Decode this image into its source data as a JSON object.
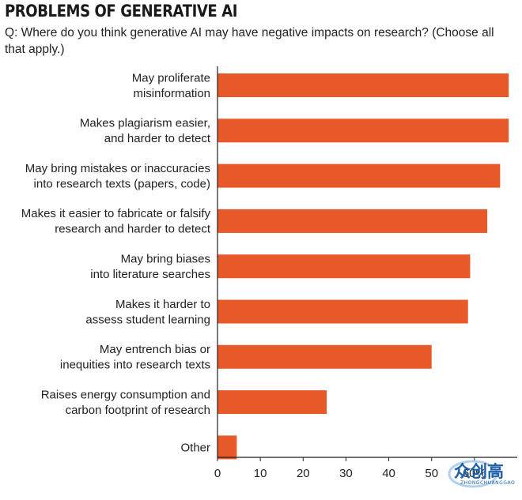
{
  "header": {
    "title": "PROBLEMS OF GENERATIVE AI",
    "question": "Q: Where do you think generative AI may have negative impacts on research? (Choose all that apply.)"
  },
  "colors": {
    "bar": "#e8592a",
    "text": "#222222"
  },
  "chart_data": {
    "type": "bar",
    "orientation": "horizontal",
    "categories": [
      [
        "May proliferate",
        "misinformation"
      ],
      [
        "Makes plagiarism easier,",
        "and harder to detect"
      ],
      [
        "May bring mistakes or inaccuracies",
        "into research texts (papers, code)"
      ],
      [
        "Makes it easier to fabricate or falsify",
        "research and harder to detect"
      ],
      [
        "May bring biases",
        "into literature searches"
      ],
      [
        "Makes it harder to",
        "assess student learning"
      ],
      [
        "May entrench bias or",
        "inequities into research texts"
      ],
      [
        "Raises energy consumption and",
        "carbon footprint of research"
      ],
      [
        "Other"
      ]
    ],
    "values": [
      68,
      68,
      66,
      63,
      59,
      58.5,
      50,
      25.5,
      4.5
    ],
    "xlim": [
      0,
      70
    ],
    "ticks": [
      "0",
      "10",
      "20",
      "30",
      "40",
      "50",
      "60%"
    ],
    "grid": false
  },
  "watermark": {
    "text": "众创高",
    "subtext": "ZHONGCHUANGGAO"
  }
}
